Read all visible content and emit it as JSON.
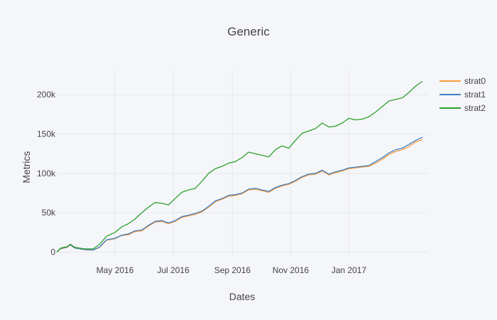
{
  "chart_data": {
    "type": "line",
    "title": "Generic",
    "xlabel": "Dates",
    "ylabel": "Metrics",
    "xlim": [
      "2016-03-01",
      "2017-03-25"
    ],
    "ylim": [
      -5000,
      230000
    ],
    "x_ticks": [
      {
        "date": "2016-05-01",
        "label": "May 2016"
      },
      {
        "date": "2016-07-01",
        "label": "Jul 2016"
      },
      {
        "date": "2016-09-01",
        "label": "Sep 2016"
      },
      {
        "date": "2016-11-01",
        "label": "Nov 2016"
      },
      {
        "date": "2017-01-01",
        "label": "Jan 2017"
      }
    ],
    "y_ticks": [
      {
        "value": 0,
        "label": "0"
      },
      {
        "value": 50000,
        "label": "50k"
      },
      {
        "value": 100000,
        "label": "100k"
      },
      {
        "value": 150000,
        "label": "150k"
      },
      {
        "value": 200000,
        "label": "200k"
      }
    ],
    "grid": true,
    "legend_position": "top-right",
    "series": [
      {
        "name": "strat0",
        "color": "#ff9a3c",
        "points": [
          [
            "2016-03-01",
            0
          ],
          [
            "2016-03-05",
            4000
          ],
          [
            "2016-03-12",
            6000
          ],
          [
            "2016-03-15",
            9000
          ],
          [
            "2016-03-20",
            5000
          ],
          [
            "2016-03-30",
            3000
          ],
          [
            "2016-04-08",
            2500
          ],
          [
            "2016-04-15",
            6000
          ],
          [
            "2016-04-22",
            15000
          ],
          [
            "2016-05-01",
            17000
          ],
          [
            "2016-05-08",
            21000
          ],
          [
            "2016-05-15",
            22000
          ],
          [
            "2016-05-22",
            26000
          ],
          [
            "2016-05-29",
            27000
          ],
          [
            "2016-06-05",
            33000
          ],
          [
            "2016-06-12",
            38000
          ],
          [
            "2016-06-19",
            39000
          ],
          [
            "2016-06-26",
            36000
          ],
          [
            "2016-07-03",
            39000
          ],
          [
            "2016-07-10",
            44000
          ],
          [
            "2016-07-17",
            46000
          ],
          [
            "2016-07-24",
            48000
          ],
          [
            "2016-07-31",
            51000
          ],
          [
            "2016-08-07",
            57000
          ],
          [
            "2016-08-14",
            64000
          ],
          [
            "2016-08-21",
            67000
          ],
          [
            "2016-08-28",
            71000
          ],
          [
            "2016-09-04",
            72000
          ],
          [
            "2016-09-11",
            74000
          ],
          [
            "2016-09-18",
            79000
          ],
          [
            "2016-09-25",
            80000
          ],
          [
            "2016-10-02",
            78000
          ],
          [
            "2016-10-09",
            76000
          ],
          [
            "2016-10-16",
            81000
          ],
          [
            "2016-10-23",
            84000
          ],
          [
            "2016-10-30",
            86000
          ],
          [
            "2016-11-06",
            90000
          ],
          [
            "2016-11-13",
            95000
          ],
          [
            "2016-11-20",
            98000
          ],
          [
            "2016-11-27",
            99000
          ],
          [
            "2016-12-04",
            103000
          ],
          [
            "2016-12-11",
            98000
          ],
          [
            "2016-12-18",
            101000
          ],
          [
            "2016-12-25",
            103000
          ],
          [
            "2017-01-01",
            106000
          ],
          [
            "2017-01-08",
            107000
          ],
          [
            "2017-01-15",
            108000
          ],
          [
            "2017-01-22",
            109000
          ],
          [
            "2017-01-29",
            113000
          ],
          [
            "2017-02-05",
            118000
          ],
          [
            "2017-02-12",
            124000
          ],
          [
            "2017-02-19",
            128000
          ],
          [
            "2017-02-26",
            130000
          ],
          [
            "2017-03-05",
            134000
          ],
          [
            "2017-03-12",
            140000
          ],
          [
            "2017-03-19",
            143000
          ]
        ]
      },
      {
        "name": "strat1",
        "color": "#3d7fc1",
        "points": [
          [
            "2016-03-01",
            0
          ],
          [
            "2016-03-05",
            4500
          ],
          [
            "2016-03-12",
            6500
          ],
          [
            "2016-03-15",
            9500
          ],
          [
            "2016-03-20",
            5200
          ],
          [
            "2016-03-30",
            3200
          ],
          [
            "2016-04-08",
            2700
          ],
          [
            "2016-04-15",
            6500
          ],
          [
            "2016-04-22",
            15500
          ],
          [
            "2016-05-01",
            17500
          ],
          [
            "2016-05-08",
            21500
          ],
          [
            "2016-05-15",
            23000
          ],
          [
            "2016-05-22",
            27000
          ],
          [
            "2016-05-29",
            28000
          ],
          [
            "2016-06-05",
            34000
          ],
          [
            "2016-06-12",
            39000
          ],
          [
            "2016-06-19",
            40000
          ],
          [
            "2016-06-26",
            37000
          ],
          [
            "2016-07-03",
            40000
          ],
          [
            "2016-07-10",
            45000
          ],
          [
            "2016-07-17",
            47000
          ],
          [
            "2016-07-24",
            49000
          ],
          [
            "2016-07-31",
            52000
          ],
          [
            "2016-08-07",
            58000
          ],
          [
            "2016-08-14",
            65000
          ],
          [
            "2016-08-21",
            68000
          ],
          [
            "2016-08-28",
            72000
          ],
          [
            "2016-09-04",
            73000
          ],
          [
            "2016-09-11",
            75000
          ],
          [
            "2016-09-18",
            80000
          ],
          [
            "2016-09-25",
            81000
          ],
          [
            "2016-10-02",
            79000
          ],
          [
            "2016-10-09",
            77000
          ],
          [
            "2016-10-16",
            82000
          ],
          [
            "2016-10-23",
            85000
          ],
          [
            "2016-10-30",
            87000
          ],
          [
            "2016-11-06",
            91000
          ],
          [
            "2016-11-13",
            96000
          ],
          [
            "2016-11-20",
            99000
          ],
          [
            "2016-11-27",
            100000
          ],
          [
            "2016-12-04",
            104000
          ],
          [
            "2016-12-11",
            99000
          ],
          [
            "2016-12-18",
            102000
          ],
          [
            "2016-12-25",
            104000
          ],
          [
            "2017-01-01",
            107000
          ],
          [
            "2017-01-08",
            108000
          ],
          [
            "2017-01-15",
            109000
          ],
          [
            "2017-01-22",
            110000
          ],
          [
            "2017-01-29",
            115000
          ],
          [
            "2017-02-05",
            120000
          ],
          [
            "2017-02-12",
            126000
          ],
          [
            "2017-02-19",
            130000
          ],
          [
            "2017-02-26",
            132000
          ],
          [
            "2017-03-05",
            137000
          ],
          [
            "2017-03-12",
            142000
          ],
          [
            "2017-03-19",
            146000
          ]
        ]
      },
      {
        "name": "strat2",
        "color": "#2ca02c",
        "points": [
          [
            "2016-03-01",
            0
          ],
          [
            "2016-03-05",
            5000
          ],
          [
            "2016-03-12",
            7000
          ],
          [
            "2016-03-15",
            10000
          ],
          [
            "2016-03-20",
            6000
          ],
          [
            "2016-03-30",
            4000
          ],
          [
            "2016-04-08",
            4000
          ],
          [
            "2016-04-15",
            10000
          ],
          [
            "2016-04-22",
            20000
          ],
          [
            "2016-05-01",
            25000
          ],
          [
            "2016-05-08",
            32000
          ],
          [
            "2016-05-15",
            36000
          ],
          [
            "2016-05-22",
            42000
          ],
          [
            "2016-05-29",
            50000
          ],
          [
            "2016-06-05",
            57000
          ],
          [
            "2016-06-12",
            63000
          ],
          [
            "2016-06-19",
            62000
          ],
          [
            "2016-06-26",
            60000
          ],
          [
            "2016-07-03",
            68000
          ],
          [
            "2016-07-10",
            76000
          ],
          [
            "2016-07-17",
            79000
          ],
          [
            "2016-07-24",
            81000
          ],
          [
            "2016-07-31",
            90000
          ],
          [
            "2016-08-07",
            100000
          ],
          [
            "2016-08-14",
            106000
          ],
          [
            "2016-08-21",
            109000
          ],
          [
            "2016-08-28",
            113000
          ],
          [
            "2016-09-04",
            115000
          ],
          [
            "2016-09-11",
            120000
          ],
          [
            "2016-09-18",
            127000
          ],
          [
            "2016-09-25",
            125000
          ],
          [
            "2016-10-02",
            123000
          ],
          [
            "2016-10-09",
            121000
          ],
          [
            "2016-10-16",
            130000
          ],
          [
            "2016-10-23",
            135000
          ],
          [
            "2016-10-30",
            132000
          ],
          [
            "2016-11-06",
            142000
          ],
          [
            "2016-11-13",
            151000
          ],
          [
            "2016-11-20",
            154000
          ],
          [
            "2016-11-27",
            157000
          ],
          [
            "2016-12-04",
            164000
          ],
          [
            "2016-12-11",
            159000
          ],
          [
            "2016-12-18",
            160000
          ],
          [
            "2016-12-25",
            164000
          ],
          [
            "2017-01-01",
            170000
          ],
          [
            "2017-01-08",
            168000
          ],
          [
            "2017-01-15",
            169000
          ],
          [
            "2017-01-22",
            172000
          ],
          [
            "2017-01-29",
            178000
          ],
          [
            "2017-02-05",
            185000
          ],
          [
            "2017-02-12",
            192000
          ],
          [
            "2017-02-19",
            194000
          ],
          [
            "2017-02-26",
            196000
          ],
          [
            "2017-03-05",
            203000
          ],
          [
            "2017-03-12",
            211000
          ],
          [
            "2017-03-19",
            217000
          ]
        ]
      }
    ]
  }
}
